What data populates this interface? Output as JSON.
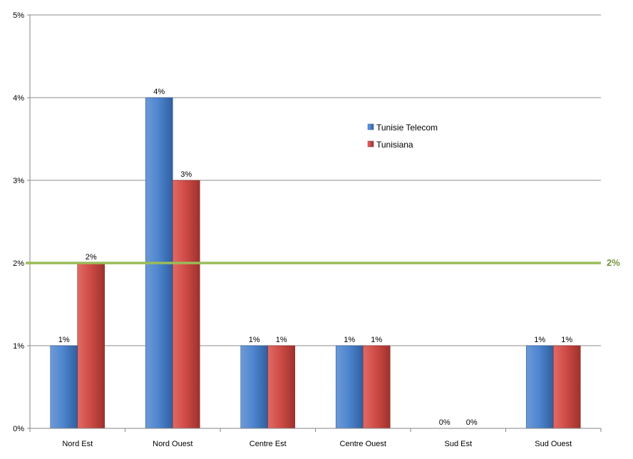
{
  "chart_data": {
    "type": "bar",
    "title": "",
    "xlabel": "",
    "ylabel": "",
    "categories": [
      "Nord Est",
      "Nord Ouest",
      "Centre Est",
      "Centre Ouest",
      "Sud Est",
      "Sud Ouest"
    ],
    "series": [
      {
        "name": "Tunisie Telecom",
        "values": [
          1,
          4,
          1,
          1,
          0,
          1
        ],
        "labels": [
          "1%",
          "4%",
          "1%",
          "1%",
          "0%",
          "1%"
        ],
        "color": "#4a7ebb"
      },
      {
        "name": "Tunisiana",
        "values": [
          2,
          3,
          1,
          1,
          0,
          1
        ],
        "labels": [
          "2%",
          "3%",
          "1%",
          "1%",
          "0%",
          "1%"
        ],
        "color": "#c0504d"
      }
    ],
    "ylim": [
      0,
      5
    ],
    "yticks": [
      0,
      1,
      2,
      3,
      4,
      5
    ],
    "ytick_labels": [
      "0%",
      "1%",
      "2%",
      "3%",
      "4%",
      "5%"
    ],
    "reference_line": {
      "value": 2,
      "label": "2%",
      "color": "#9bbb59"
    },
    "grid": true,
    "legend_position": "upper-right"
  }
}
